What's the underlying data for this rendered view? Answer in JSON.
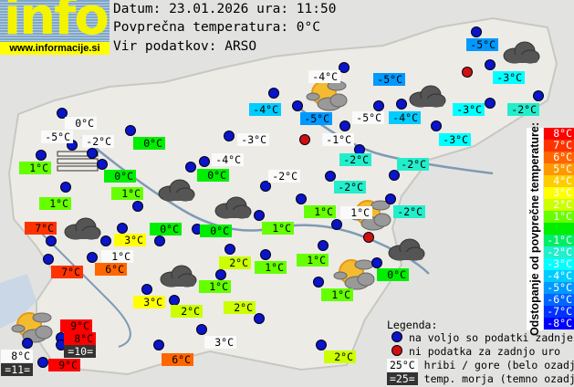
{
  "header": {
    "logo_text": "info",
    "logo_url": "www.informacije.si",
    "date_line": "Datum: 23.01.2026 ura: 11:50",
    "avg_line": "Povprečna temperatura: 0°C",
    "source_line": "Vir podatkov: ARSO"
  },
  "colors": {
    "8": "#ff0000",
    "7": "#ff3300",
    "6": "#ff6600",
    "5": "#ff9900",
    "4": "#ffcc00",
    "3": "#ffff00",
    "2": "#ccff00",
    "1": "#66ff00",
    "0": "#00ee00",
    "-1": "#00ee66",
    "-2": "#22eecc",
    "-3": "#00ffff",
    "-4": "#00ccff",
    "-5": "#0099ff",
    "-6": "#0066ff",
    "-7": "#0033ff",
    "-8": "#0000ff",
    "station_ok": "#0a14c8",
    "station_missing": "#d01010"
  },
  "stations": [
    {
      "text": "0°C",
      "bg": "white"
    },
    {
      "text": "-5°C",
      "bg": "white"
    },
    {
      "text": "-2°C",
      "bg": "white"
    },
    {
      "text": "0°C",
      "bg": "0"
    },
    {
      "text": "1°C",
      "bg": "1"
    },
    {
      "text": "-3°C",
      "bg": "white"
    },
    {
      "text": "-4°C",
      "bg": "white"
    },
    {
      "text": "0°C",
      "bg": "0"
    },
    {
      "text": "0°C",
      "bg": "0"
    },
    {
      "text": "-4°C",
      "bg": "-4"
    },
    {
      "text": "1°C",
      "bg": "1"
    },
    {
      "text": "1°C",
      "bg": "1"
    },
    {
      "text": "-2°C",
      "bg": "white"
    },
    {
      "text": "7°C",
      "bg": "7"
    },
    {
      "text": "3°C",
      "bg": "3"
    },
    {
      "text": "0°C",
      "bg": "0"
    },
    {
      "text": "0°C",
      "bg": "0"
    },
    {
      "text": "1°C",
      "bg": "1"
    },
    {
      "text": "1°C",
      "bg": "white"
    },
    {
      "text": "7°C",
      "bg": "7"
    },
    {
      "text": "6°C",
      "bg": "6"
    },
    {
      "text": "2°C",
      "bg": "2"
    },
    {
      "text": "1°C",
      "bg": "1"
    },
    {
      "text": "1°C",
      "bg": "1"
    },
    {
      "text": "1°C",
      "bg": "1"
    },
    {
      "text": "1°C",
      "bg": "1"
    },
    {
      "text": "3°C",
      "bg": "3"
    },
    {
      "text": "2°C",
      "bg": "2"
    },
    {
      "text": "2°C",
      "bg": "2"
    },
    {
      "text": "9°C",
      "bg": "8"
    },
    {
      "text": "8°C",
      "bg": "8"
    },
    {
      "text": "=10=",
      "bg": "dark"
    },
    {
      "text": "8°C",
      "bg": "white"
    },
    {
      "text": "=11=",
      "bg": "dark"
    },
    {
      "text": "9°C",
      "bg": "8"
    },
    {
      "text": "3°C",
      "bg": "white"
    },
    {
      "text": "6°C",
      "bg": "6"
    },
    {
      "text": "2°C",
      "bg": "2"
    },
    {
      "text": "-5°C",
      "bg": "-5"
    },
    {
      "text": "-3°C",
      "bg": "-3"
    },
    {
      "text": "-4°C",
      "bg": "white"
    },
    {
      "text": "-5°C",
      "bg": "-5"
    },
    {
      "text": "-5°C",
      "bg": "-5"
    },
    {
      "text": "-5°C",
      "bg": "white"
    },
    {
      "text": "-4°C",
      "bg": "-4"
    },
    {
      "text": "-3°C",
      "bg": "-3"
    },
    {
      "text": "-2°C",
      "bg": "-2"
    },
    {
      "text": "-1°C",
      "bg": "white"
    },
    {
      "text": "-3°C",
      "bg": "-3"
    },
    {
      "text": "-2°C",
      "bg": "-2"
    },
    {
      "text": "-2°C",
      "bg": "-2"
    },
    {
      "text": "-2°C",
      "bg": "-2"
    },
    {
      "text": "1°C",
      "bg": "1"
    },
    {
      "text": "1°C",
      "bg": "white"
    },
    {
      "text": "-2°C",
      "bg": "-2"
    },
    {
      "text": "0°C",
      "bg": "0"
    }
  ],
  "weather_icons": [
    "fog",
    "cloudy",
    "cloudy",
    "cloudy",
    "cloudy",
    "partly-cloudy",
    "cloudy",
    "cloudy",
    "partly-cloudy",
    "cloudy",
    "partly-cloudy",
    "partly-cloudy"
  ],
  "scale": {
    "title": "Odstopanje od povprečne temperature:",
    "items": [
      {
        "label": "8°C",
        "key": "8"
      },
      {
        "label": "7°C",
        "key": "7"
      },
      {
        "label": "6°C",
        "key": "6"
      },
      {
        "label": "5°C",
        "key": "5"
      },
      {
        "label": "4°C",
        "key": "4"
      },
      {
        "label": "3°C",
        "key": "3"
      },
      {
        "label": "2°C",
        "key": "2"
      },
      {
        "label": "1°C",
        "key": "1"
      },
      {
        "label": "",
        "key": "0"
      },
      {
        "label": "-1°C",
        "key": "-1"
      },
      {
        "label": "-2°C",
        "key": "-2"
      },
      {
        "label": "-3°C",
        "key": "-3"
      },
      {
        "label": "-4°C",
        "key": "-4"
      },
      {
        "label": "-5°C",
        "key": "-5"
      },
      {
        "label": "-6°C",
        "key": "-6"
      },
      {
        "label": "-7°C",
        "key": "-7"
      },
      {
        "label": "-8°C",
        "key": "-8"
      }
    ]
  },
  "legend": {
    "title": "Legenda:",
    "blue_dot": "na voljo so podatki zadnje ure",
    "red_dot": "ni podatka za zadnjo uro",
    "white_sample": "25°C",
    "white_desc": "hribi / gore (belo ozadje)",
    "dark_sample": "=25=",
    "dark_desc": "temp. morja (temno ozadje)"
  }
}
